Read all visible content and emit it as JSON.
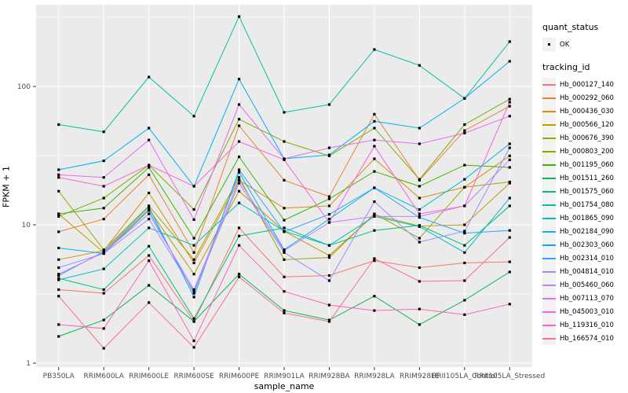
{
  "figure": {
    "background": "#FFFFFF"
  },
  "panel": {
    "background": "#EBEBEB",
    "grid_color": "#FFFFFF",
    "tick_color": "#333333",
    "tick_text_color": "#4D4D4D"
  },
  "axes": {
    "x_title": "sample_name",
    "y_title": "FPKM + 1",
    "y_tick_labels": [
      "1",
      "10",
      "100"
    ],
    "y_tick_values": [
      1,
      10,
      100
    ]
  },
  "legend": {
    "key_background": "#F2F2F2",
    "quant_status": {
      "title": "quant_status",
      "items": [
        {
          "label": "OK",
          "glyph": "black-square-point"
        }
      ]
    },
    "tracking_id": {
      "title": "tracking_id"
    }
  },
  "chart_data": {
    "type": "line",
    "title": "",
    "xlabel": "sample_name",
    "ylabel": "FPKM + 1",
    "y_scale": "log10",
    "ylim": [
      0.94,
      390
    ],
    "y_major_ticks": [
      1,
      10,
      100
    ],
    "grid": true,
    "legend_position": "right",
    "point_marker": {
      "shape": "square",
      "color": "#000000",
      "size": 3.2
    },
    "categories": [
      "PB350LA",
      "RRIM600LA",
      "RRIM600LE",
      "RRIM600SE",
      "RRIM600PE",
      "RRIM901LA",
      "RRIM928BA",
      "RRIM928LA",
      "RRIM928LE",
      "RRII105LA_Control",
      "RRII105LA_Stressed"
    ],
    "series": [
      {
        "name": "Hb_000127_140",
        "color": "#F8766D",
        "values": [
          3.4,
          3.2,
          6.0,
          2.0,
          9.5,
          4.2,
          4.3,
          5.5,
          4.9,
          5.3,
          5.4
        ]
      },
      {
        "name": "Hb_000292_060",
        "color": "#EA8331",
        "values": [
          8.9,
          11.0,
          23,
          6.3,
          52,
          21,
          16,
          63,
          21,
          48,
          72
        ]
      },
      {
        "name": "Hb_000436_030",
        "color": "#D89000",
        "values": [
          5.6,
          6.5,
          17,
          5.3,
          21,
          13.2,
          13.7,
          30,
          15.6,
          18.7,
          31.5
        ]
      },
      {
        "name": "Hb_000566_120",
        "color": "#C09B00",
        "values": [
          12,
          6.3,
          13,
          4.4,
          17.5,
          9.0,
          6.0,
          11.8,
          9.8,
          10,
          20
        ]
      },
      {
        "name": "Hb_000676_390",
        "color": "#A3A500",
        "values": [
          17.5,
          6.6,
          13.7,
          5.6,
          22,
          5.6,
          5.8,
          12,
          8.0,
          18.7,
          20.4
        ]
      },
      {
        "name": "Hb_000803_200",
        "color": "#7CAE00",
        "values": [
          11.5,
          15.6,
          27,
          12.9,
          58,
          40,
          31.5,
          50,
          21.3,
          53,
          81
        ]
      },
      {
        "name": "Hb_001195_060",
        "color": "#39B600",
        "values": [
          12,
          13.2,
          26,
          8.0,
          31,
          10.8,
          15.4,
          24.3,
          19,
          27,
          26
        ]
      },
      {
        "name": "Hb_001511_260",
        "color": "#00BB4E",
        "values": [
          1.56,
          2.05,
          3.65,
          2.0,
          4.4,
          2.4,
          2.05,
          3.05,
          1.9,
          2.85,
          4.56
        ]
      },
      {
        "name": "Hb_001575_060",
        "color": "#00BF7D",
        "values": [
          4.1,
          3.4,
          7.0,
          2.1,
          8.3,
          9.5,
          7.1,
          9.1,
          9.9,
          7.1,
          13.7
        ]
      },
      {
        "name": "Hb_001754_080",
        "color": "#00C1A3",
        "values": [
          53,
          47,
          117,
          61,
          320,
          65,
          74,
          185,
          142,
          82,
          211
        ]
      },
      {
        "name": "Hb_001865_090",
        "color": "#00BFC4",
        "values": [
          4.0,
          4.8,
          9.5,
          7.1,
          14.4,
          9.0,
          7.1,
          11.5,
          9.7,
          6.3,
          15.6
        ]
      },
      {
        "name": "Hb_002184_090",
        "color": "#00BAE0",
        "values": [
          6.8,
          6.2,
          12.7,
          3.2,
          24,
          6.6,
          11,
          18.5,
          12.9,
          21.3,
          38.5
        ]
      },
      {
        "name": "Hb_002303_060",
        "color": "#00B0F6",
        "values": [
          25,
          29,
          50,
          19,
          113,
          30,
          32,
          56,
          50,
          82,
          152
        ]
      },
      {
        "name": "Hb_002314_010",
        "color": "#35A2FF",
        "values": [
          4.3,
          6.4,
          13.5,
          3.0,
          25,
          8.9,
          11.9,
          18.5,
          11.3,
          8.7,
          9.1
        ]
      },
      {
        "name": "Hb_004814_010",
        "color": "#9590FF",
        "values": [
          4.9,
          6.2,
          11,
          3.3,
          20,
          6.3,
          3.95,
          14.7,
          7.5,
          9.0,
          36
        ]
      },
      {
        "name": "Hb_005460_060",
        "color": "#C77CFF",
        "values": [
          4.4,
          6.3,
          12,
          3.4,
          21,
          6.5,
          10.4,
          11.5,
          11.5,
          13.7,
          29.5
        ]
      },
      {
        "name": "Hb_007113_070",
        "color": "#E76BF3",
        "values": [
          23,
          22,
          41,
          10.9,
          74,
          30,
          36,
          41,
          38.5,
          46,
          61
        ]
      },
      {
        "name": "Hb_045003_010",
        "color": "#FA62DB",
        "values": [
          22,
          19,
          27,
          19,
          40,
          29.5,
          10.4,
          37,
          12,
          13.7,
          77
        ]
      },
      {
        "name": "Hb_119316_010",
        "color": "#FF62BC",
        "values": [
          1.9,
          1.78,
          5.5,
          1.45,
          7.1,
          3.3,
          2.63,
          2.4,
          2.46,
          2.24,
          2.67
        ]
      },
      {
        "name": "Hb_166574_010",
        "color": "#FF6A98",
        "values": [
          3.05,
          1.28,
          2.74,
          1.3,
          4.2,
          2.3,
          2.0,
          5.7,
          3.9,
          3.95,
          8.1
        ]
      }
    ]
  }
}
